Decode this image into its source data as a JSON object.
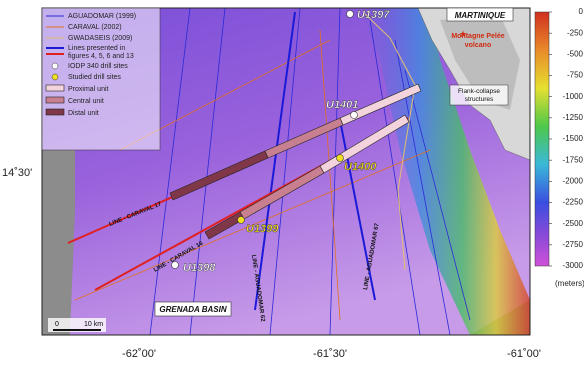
{
  "legend": {
    "items": [
      "AGUADOMAR (1999)",
      "CARAVAL (2002)",
      "GWADASEIS (2009)",
      "Lines presented in",
      "figures 4, 5, 6 and 13",
      "IODP 340 drill sites",
      "Studied drill sites",
      "Proximal unit",
      "Central unit",
      "Distal unit"
    ]
  },
  "sites": [
    "U1397",
    "U1401",
    "U1400",
    "U1399",
    "U1398"
  ],
  "seismic_lines": [
    "LINE - CARAVAL 17",
    "LINE - CARAVAL 16",
    "LINE - AGUADOMAR 62",
    "LINE - AGUADOMAR 67"
  ],
  "places": {
    "island": "MARTINIQUE",
    "volcano": [
      "Montagne Pelée",
      "volcano"
    ],
    "flank": [
      "Flank-collapse",
      "structures"
    ],
    "basin": "GRENADA BASIN"
  },
  "scale_bar": {
    "start": "0",
    "length": "10 km"
  },
  "axes": {
    "x_labels": [
      "-62˚00'",
      "-61˚30'",
      "-61˚00'"
    ],
    "y_labels": [
      "14˚30'"
    ]
  },
  "colorbar": {
    "lim": [
      -3000,
      0
    ],
    "ticks": [
      0,
      -250,
      -500,
      -750,
      -1000,
      -1250,
      -1500,
      -1750,
      -2000,
      -2250,
      -2500,
      -2750,
      -3000
    ],
    "unit": "(meters)"
  }
}
